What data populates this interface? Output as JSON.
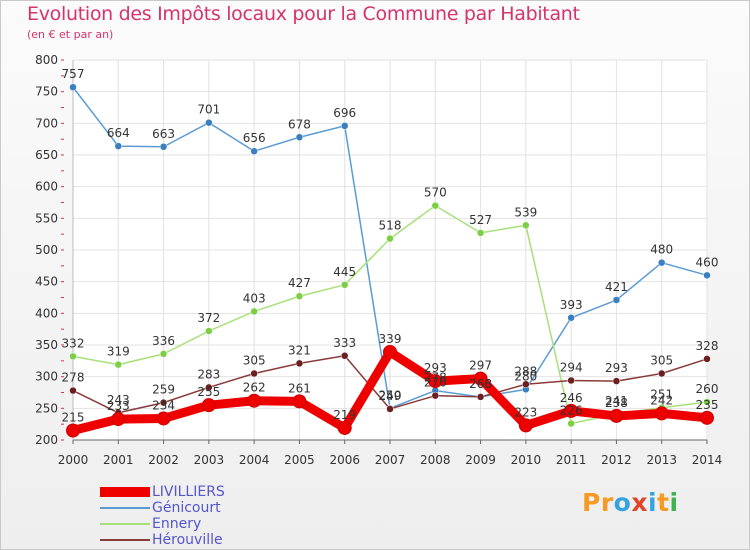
{
  "title": "Evolution des Impôts locaux pour la Commune par Habitant",
  "subtitle": "(en € et par an)",
  "logo": {
    "text": "Proxiti",
    "letters": [
      "P",
      "r",
      "o",
      "x",
      "i",
      "t",
      "i"
    ],
    "colors": [
      "#f59a23",
      "#f59a23",
      "#35a3e0",
      "#e2432c",
      "#35a3e0",
      "#f59a23",
      "#3fb34f"
    ]
  },
  "chart_data": {
    "type": "line",
    "x": [
      "2000",
      "2001",
      "2002",
      "2003",
      "2004",
      "2005",
      "2006",
      "2007",
      "2008",
      "2009",
      "2010",
      "2011",
      "2012",
      "2013",
      "2014"
    ],
    "ylim": [
      200,
      800
    ],
    "yticks": [
      200,
      250,
      300,
      350,
      400,
      450,
      500,
      550,
      600,
      650,
      700,
      750,
      800
    ],
    "grid": true,
    "legend_position": "bottom-left",
    "series": [
      {
        "name": "Génicourt",
        "color": "#5b9bd5",
        "point_color": "#3a7fc0",
        "values": [
          757,
          664,
          663,
          701,
          656,
          678,
          696,
          250,
          278,
          268,
          280,
          393,
          421,
          480,
          460
        ],
        "labels": [
          "757",
          "664",
          "663",
          "701",
          "656",
          "678",
          "696",
          "250",
          "278",
          "268",
          "280",
          "393",
          "421",
          "480",
          "460"
        ]
      },
      {
        "name": "Ennery",
        "color": "#a8e07a",
        "point_color": "#7ccf45",
        "values": [
          332,
          319,
          336,
          372,
          403,
          427,
          445,
          518,
          570,
          527,
          539,
          226,
          241,
          251,
          260
        ],
        "labels": [
          "332",
          "319",
          "336",
          "372",
          "403",
          "427",
          "445",
          "518",
          "570",
          "527",
          "539",
          "226",
          "241",
          "251",
          "260"
        ]
      },
      {
        "name": "Hérouville",
        "color": "#8b3a3a",
        "point_color": "#6b2020",
        "values": [
          278,
          243,
          259,
          283,
          305,
          321,
          333,
          249,
          270,
          268,
          288,
          294,
          293,
          305,
          328
        ],
        "labels": [
          "278",
          "243",
          "259",
          "283",
          "305",
          "321",
          "333",
          "249",
          "270",
          "268",
          "288",
          "294",
          "293",
          "305",
          "328"
        ]
      },
      {
        "name": "LIVILLIERS",
        "color": "#ee0000",
        "point_color": "#ee0000",
        "values": [
          215,
          233,
          234,
          255,
          262,
          261,
          219,
          339,
          293,
          297,
          223,
          246,
          238,
          242,
          235
        ],
        "labels": [
          "215",
          "233",
          "234",
          "255",
          "262",
          "261",
          "219",
          "339",
          "293",
          "297",
          "223",
          "246",
          "238",
          "242",
          "235"
        ]
      }
    ],
    "legend_order": [
      "LIVILLIERS",
      "Génicourt",
      "Ennery",
      "Hérouville"
    ]
  }
}
